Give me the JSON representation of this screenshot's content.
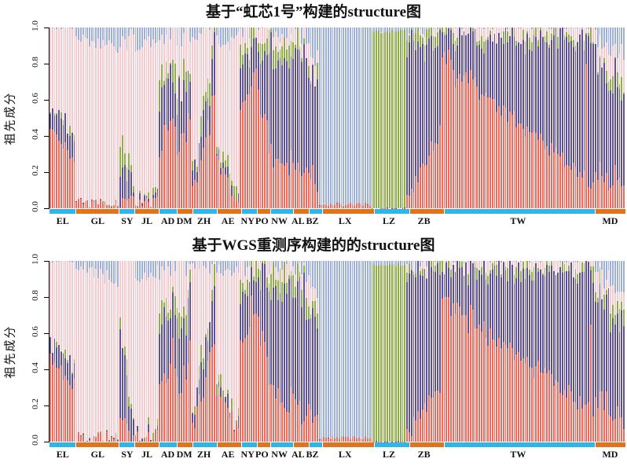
{
  "figure": {
    "ylabel": "祖先成分",
    "yticks": [
      "1.0",
      "0.8",
      "0.6",
      "0.4",
      "0.2",
      "0.0"
    ],
    "ylim": [
      0.0,
      1.0
    ]
  },
  "colors": {
    "ancestry_red": "#ed6a5c",
    "ancestry_purple": "#5f5192",
    "ancestry_green": "#8fae4a",
    "ancestry_pink": "#f4ccd0",
    "ancestry_blue": "#9fb0d8",
    "strip": [
      "#2eb6e8",
      "#e0741d"
    ],
    "bar_separator": "rgba(255,255,255,0.5)",
    "axis": "#000000"
  },
  "chart_data": [
    {
      "type": "bar",
      "subtype": "stacked-structure",
      "title": "基于“虹芯1号”构建的structure图",
      "ylabel": "祖先成分",
      "ylim": [
        0.0,
        1.0
      ],
      "seed": 7,
      "components": [
        {
          "name": "ancestry-red",
          "color": "#ed6a5c"
        },
        {
          "name": "ancestry-purple",
          "color": "#5f5192"
        },
        {
          "name": "ancestry-green",
          "color": "#8fae4a"
        },
        {
          "name": "ancestry-pink",
          "color": "#f4ccd0"
        },
        {
          "name": "ancestry-blue",
          "color": "#9fb0d8"
        }
      ],
      "populations": [
        {
          "code": "EL",
          "n": 12,
          "start": [
            0.46,
            0.12,
            0.0,
            0.42,
            0.0
          ],
          "end": [
            0.26,
            0.14,
            0.02,
            0.58,
            0.0
          ],
          "jitter": 0.05
        },
        {
          "code": "GL",
          "n": 20,
          "start": [
            0.02,
            0.0,
            0.0,
            0.94,
            0.04
          ],
          "end": [
            0.02,
            0.0,
            0.0,
            0.86,
            0.12
          ],
          "jitter": 0.04
        },
        {
          "code": "SY",
          "n": 7,
          "start": [
            0.07,
            0.22,
            0.12,
            0.52,
            0.07
          ],
          "end": [
            0.04,
            0.04,
            0.02,
            0.84,
            0.06
          ],
          "jitter": 0.08
        },
        {
          "code": "JL",
          "n": 11,
          "start": [
            0.03,
            0.01,
            0.0,
            0.86,
            0.1
          ],
          "end": [
            0.03,
            0.02,
            0.01,
            0.88,
            0.06
          ],
          "jitter": 0.04
        },
        {
          "code": "AD",
          "n": 8,
          "start": [
            0.32,
            0.3,
            0.09,
            0.24,
            0.05
          ],
          "end": [
            0.5,
            0.24,
            0.08,
            0.16,
            0.02
          ],
          "jitter": 0.08
        },
        {
          "code": "DM",
          "n": 7,
          "start": [
            0.28,
            0.3,
            0.08,
            0.3,
            0.04
          ],
          "end": [
            0.55,
            0.25,
            0.07,
            0.12,
            0.01
          ],
          "jitter": 0.1
        },
        {
          "code": "ZH",
          "n": 11,
          "start": [
            0.08,
            0.06,
            0.02,
            0.8,
            0.04
          ],
          "end": [
            0.55,
            0.28,
            0.08,
            0.09,
            0.0
          ],
          "jitter": 0.1
        },
        {
          "code": "AE",
          "n": 11,
          "start": [
            0.28,
            0.03,
            0.04,
            0.58,
            0.07
          ],
          "end": [
            0.06,
            0.02,
            0.02,
            0.82,
            0.08
          ],
          "jitter": 0.06
        },
        {
          "code": "NY",
          "n": 7,
          "start": [
            0.55,
            0.26,
            0.08,
            0.09,
            0.02
          ],
          "end": [
            0.72,
            0.18,
            0.06,
            0.04,
            0.0
          ],
          "jitter": 0.07
        },
        {
          "code": "PO",
          "n": 6,
          "start": [
            0.7,
            0.22,
            0.05,
            0.03,
            0.0
          ],
          "end": [
            0.45,
            0.42,
            0.08,
            0.05,
            0.0
          ],
          "jitter": 0.07
        },
        {
          "code": "NW",
          "n": 10,
          "start": [
            0.32,
            0.54,
            0.08,
            0.04,
            0.02
          ],
          "end": [
            0.2,
            0.66,
            0.08,
            0.04,
            0.02
          ],
          "jitter": 0.07
        },
        {
          "code": "AL",
          "n": 7,
          "start": [
            0.3,
            0.55,
            0.08,
            0.04,
            0.03
          ],
          "end": [
            0.15,
            0.7,
            0.07,
            0.04,
            0.04
          ],
          "jitter": 0.07
        },
        {
          "code": "BZ",
          "n": 6,
          "start": [
            0.22,
            0.52,
            0.05,
            0.13,
            0.08
          ],
          "end": [
            0.1,
            0.58,
            0.04,
            0.08,
            0.2
          ],
          "jitter": 0.08
        },
        {
          "code": "LX",
          "n": 24,
          "start": [
            0.02,
            0.0,
            0.0,
            0.0,
            0.98
          ],
          "end": [
            0.02,
            0.0,
            0.0,
            0.0,
            0.98
          ],
          "jitter": 0.01
        },
        {
          "code": "LZ",
          "n": 16,
          "start": [
            0.0,
            0.0,
            0.98,
            0.0,
            0.02
          ],
          "end": [
            0.0,
            0.0,
            0.98,
            0.0,
            0.02
          ],
          "jitter": 0.01
        },
        {
          "code": "ZB",
          "n": 16,
          "start": [
            0.05,
            0.86,
            0.06,
            0.01,
            0.02
          ],
          "end": [
            0.42,
            0.54,
            0.03,
            0.01,
            0.0
          ],
          "jitter": 0.06
        },
        {
          "code": "TW",
          "n": 70,
          "start": [
            0.84,
            0.13,
            0.01,
            0.02,
            0.0
          ],
          "end": [
            0.14,
            0.78,
            0.03,
            0.05,
            0.0
          ],
          "jitter": 0.06,
          "spike": {
            "at": 0.96,
            "comp": [
              0.8,
              0.16,
              0.01,
              0.03,
              0.0
            ]
          }
        },
        {
          "code": "MD",
          "n": 14,
          "start": [
            0.22,
            0.6,
            0.04,
            0.09,
            0.05
          ],
          "end": [
            0.1,
            0.52,
            0.08,
            0.14,
            0.16
          ],
          "jitter": 0.07
        }
      ]
    },
    {
      "type": "bar",
      "subtype": "stacked-structure",
      "title": "基于WGS重测序构建的的structure图",
      "ylabel": "祖先成分",
      "ylim": [
        0.0,
        1.0
      ],
      "seed": 13,
      "components": [
        {
          "name": "ancestry-red",
          "color": "#ed6a5c"
        },
        {
          "name": "ancestry-purple",
          "color": "#5f5192"
        },
        {
          "name": "ancestry-green",
          "color": "#8fae4a"
        },
        {
          "name": "ancestry-pink",
          "color": "#f4ccd0"
        },
        {
          "name": "ancestry-blue",
          "color": "#9fb0d8"
        }
      ],
      "populations": [
        {
          "code": "EL",
          "n": 12,
          "start": [
            0.45,
            0.1,
            0.01,
            0.44,
            0.0
          ],
          "end": [
            0.3,
            0.12,
            0.03,
            0.55,
            0.0
          ],
          "jitter": 0.05
        },
        {
          "code": "GL",
          "n": 20,
          "start": [
            0.02,
            0.0,
            0.0,
            0.96,
            0.02
          ],
          "end": [
            0.02,
            0.0,
            0.0,
            0.86,
            0.12
          ],
          "jitter": 0.04
        },
        {
          "code": "SY",
          "n": 7,
          "start": [
            0.1,
            0.45,
            0.05,
            0.38,
            0.02
          ],
          "end": [
            0.04,
            0.05,
            0.02,
            0.86,
            0.03
          ],
          "jitter": 0.08
        },
        {
          "code": "JL",
          "n": 11,
          "start": [
            0.03,
            0.01,
            0.0,
            0.86,
            0.1
          ],
          "end": [
            0.03,
            0.02,
            0.01,
            0.88,
            0.06
          ],
          "jitter": 0.04
        },
        {
          "code": "AD",
          "n": 8,
          "start": [
            0.3,
            0.32,
            0.09,
            0.24,
            0.05
          ],
          "end": [
            0.5,
            0.24,
            0.08,
            0.16,
            0.02
          ],
          "jitter": 0.08
        },
        {
          "code": "DM",
          "n": 7,
          "start": [
            0.28,
            0.3,
            0.08,
            0.3,
            0.04
          ],
          "end": [
            0.55,
            0.25,
            0.07,
            0.12,
            0.01
          ],
          "jitter": 0.1
        },
        {
          "code": "ZH",
          "n": 11,
          "start": [
            0.08,
            0.06,
            0.02,
            0.8,
            0.04
          ],
          "end": [
            0.55,
            0.28,
            0.08,
            0.09,
            0.0
          ],
          "jitter": 0.1
        },
        {
          "code": "AE",
          "n": 11,
          "start": [
            0.28,
            0.03,
            0.04,
            0.58,
            0.07
          ],
          "end": [
            0.06,
            0.02,
            0.02,
            0.82,
            0.08
          ],
          "jitter": 0.06
        },
        {
          "code": "NY",
          "n": 7,
          "start": [
            0.55,
            0.26,
            0.08,
            0.09,
            0.02
          ],
          "end": [
            0.72,
            0.18,
            0.06,
            0.04,
            0.0
          ],
          "jitter": 0.07
        },
        {
          "code": "PO",
          "n": 6,
          "start": [
            0.7,
            0.22,
            0.05,
            0.03,
            0.0
          ],
          "end": [
            0.45,
            0.42,
            0.08,
            0.05,
            0.0
          ],
          "jitter": 0.07
        },
        {
          "code": "NW",
          "n": 10,
          "start": [
            0.32,
            0.54,
            0.08,
            0.04,
            0.02
          ],
          "end": [
            0.2,
            0.66,
            0.08,
            0.04,
            0.02
          ],
          "jitter": 0.07
        },
        {
          "code": "AL",
          "n": 7,
          "start": [
            0.3,
            0.55,
            0.08,
            0.04,
            0.03
          ],
          "end": [
            0.15,
            0.7,
            0.07,
            0.04,
            0.04
          ],
          "jitter": 0.07
        },
        {
          "code": "BZ",
          "n": 6,
          "start": [
            0.22,
            0.52,
            0.05,
            0.13,
            0.08
          ],
          "end": [
            0.1,
            0.58,
            0.04,
            0.08,
            0.2
          ],
          "jitter": 0.08
        },
        {
          "code": "LX",
          "n": 24,
          "start": [
            0.02,
            0.0,
            0.0,
            0.0,
            0.98
          ],
          "end": [
            0.02,
            0.0,
            0.0,
            0.0,
            0.98
          ],
          "jitter": 0.01
        },
        {
          "code": "LZ",
          "n": 16,
          "start": [
            0.0,
            0.0,
            0.98,
            0.0,
            0.02
          ],
          "end": [
            0.0,
            0.0,
            0.98,
            0.0,
            0.02
          ],
          "jitter": 0.01
        },
        {
          "code": "ZB",
          "n": 16,
          "start": [
            0.04,
            0.88,
            0.05,
            0.01,
            0.02
          ],
          "end": [
            0.3,
            0.66,
            0.03,
            0.01,
            0.0
          ],
          "jitter": 0.06
        },
        {
          "code": "TW",
          "n": 70,
          "start": [
            0.82,
            0.15,
            0.01,
            0.02,
            0.0
          ],
          "end": [
            0.15,
            0.77,
            0.03,
            0.05,
            0.0
          ],
          "jitter": 0.06,
          "spike": {
            "at": 0.98,
            "comp": [
              0.65,
              0.3,
              0.02,
              0.03,
              0.0
            ]
          }
        },
        {
          "code": "MD",
          "n": 14,
          "start": [
            0.25,
            0.58,
            0.04,
            0.09,
            0.04
          ],
          "end": [
            0.12,
            0.5,
            0.08,
            0.12,
            0.18
          ],
          "jitter": 0.07
        }
      ]
    }
  ]
}
